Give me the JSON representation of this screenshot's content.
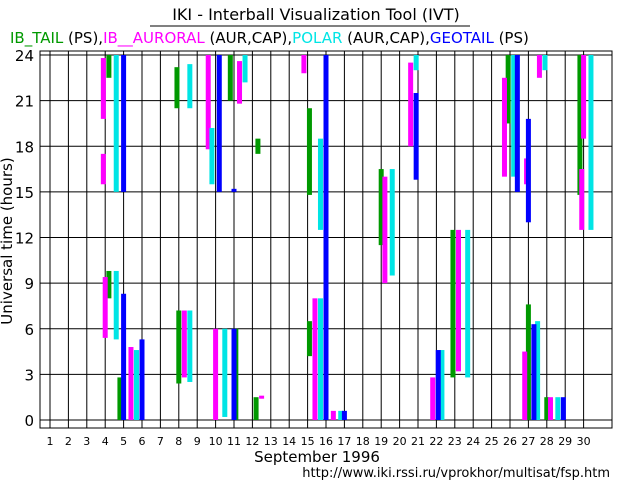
{
  "title": "IKI - Interball Visualization Tool (IVT)",
  "legend": [
    {
      "text": "IB_TAIL",
      "color": "#009900"
    },
    {
      "text": " (PS),",
      "color": "#000000"
    },
    {
      "text": "IB__AURORAL",
      "color": "#ff00ff"
    },
    {
      "text": " (AUR,CAP),",
      "color": "#000000"
    },
    {
      "text": "POLAR",
      "color": "#00e5e5"
    },
    {
      "text": " (AUR,CAP),",
      "color": "#000000"
    },
    {
      "text": "GEOTAIL",
      "color": "#0000ff"
    },
    {
      "text": " (PS)",
      "color": "#000000"
    }
  ],
  "xlabel": "September    1996",
  "ylabel": "Universal time (hours)",
  "footer_url": "http://www.iki.rssi.ru/vprokhor/multisat/fsp.htm",
  "chart_data": {
    "type": "timeline",
    "title": "IKI - Interball Visualization Tool (IVT)",
    "xlabel": "September 1996",
    "ylabel": "Universal time (hours)",
    "xlim": [
      1,
      31
    ],
    "ylim": [
      0,
      24
    ],
    "grid": true,
    "x_ticks": [
      1,
      2,
      3,
      4,
      5,
      6,
      7,
      8,
      9,
      10,
      11,
      12,
      13,
      14,
      15,
      16,
      17,
      18,
      19,
      20,
      21,
      22,
      23,
      24,
      25,
      26,
      27,
      28,
      29,
      30
    ],
    "y_ticks": [
      0,
      3,
      6,
      9,
      12,
      15,
      18,
      21,
      24
    ],
    "series": [
      {
        "name": "IB_TAIL",
        "color": "#009900",
        "intervals": [
          [
            4.2,
            22.5,
            24
          ],
          [
            4.2,
            8.0,
            9.8
          ],
          [
            4.8,
            0,
            2.8
          ],
          [
            7.9,
            20.5,
            23.2
          ],
          [
            8.0,
            2.4,
            7.2
          ],
          [
            10.8,
            21.0,
            24
          ],
          [
            11.1,
            0,
            6.0
          ],
          [
            12.2,
            0,
            1.5
          ],
          [
            12.3,
            17.5,
            18.5
          ],
          [
            15.1,
            14.8,
            20.5
          ],
          [
            15.1,
            4.2,
            6.5
          ],
          [
            19.0,
            11.5,
            16.5
          ],
          [
            22.9,
            2.8,
            12.5
          ],
          [
            25.9,
            19.5,
            24
          ],
          [
            27.0,
            0,
            7.6
          ],
          [
            28.0,
            0,
            1.5
          ],
          [
            29.8,
            14.8,
            24
          ]
        ]
      },
      {
        "name": "IB__AURORAL",
        "color": "#ff00ff",
        "intervals": [
          [
            3.9,
            19.8,
            23.8
          ],
          [
            3.9,
            15.5,
            17.5
          ],
          [
            4.0,
            5.4,
            9.4
          ],
          [
            5.4,
            0,
            4.8
          ],
          [
            8.3,
            2.8,
            7.2
          ],
          [
            9.6,
            17.8,
            24
          ],
          [
            10.0,
            0,
            6.0
          ],
          [
            11.3,
            20.8,
            23.6
          ],
          [
            12.5,
            1.4,
            1.6
          ],
          [
            14.8,
            22.8,
            24
          ],
          [
            15.4,
            0,
            8.0
          ],
          [
            16.4,
            0,
            0.6
          ],
          [
            19.2,
            9.0,
            16.0
          ],
          [
            20.6,
            18.0,
            23.5
          ],
          [
            21.8,
            0,
            2.8
          ],
          [
            23.2,
            3.2,
            12.5
          ],
          [
            25.7,
            16.0,
            22.5
          ],
          [
            26.8,
            0,
            4.5
          ],
          [
            26.9,
            15.5,
            17.2
          ],
          [
            27.3,
            0,
            6.0
          ],
          [
            27.6,
            22.5,
            24
          ],
          [
            28.2,
            0,
            1.5
          ],
          [
            29.9,
            12.5,
            16.5
          ],
          [
            30.0,
            18.5,
            24
          ]
        ]
      },
      {
        "name": "POLAR",
        "color": "#00e5e5",
        "intervals": [
          [
            4.6,
            5.3,
            9.8
          ],
          [
            4.6,
            15.0,
            24
          ],
          [
            5.7,
            0,
            4.6
          ],
          [
            8.6,
            2.5,
            7.2
          ],
          [
            8.6,
            20.5,
            23.4
          ],
          [
            9.8,
            15.5,
            19.2
          ],
          [
            10.5,
            0.2,
            6.0
          ],
          [
            11.6,
            22.2,
            24
          ],
          [
            15.7,
            0,
            8.0
          ],
          [
            15.7,
            12.5,
            18.5
          ],
          [
            16.8,
            0,
            0.6
          ],
          [
            19.6,
            9.5,
            16.5
          ],
          [
            20.9,
            23.0,
            24
          ],
          [
            22.3,
            0,
            4.6
          ],
          [
            23.7,
            2.8,
            12.5
          ],
          [
            26.2,
            16.0,
            24
          ],
          [
            27.5,
            0,
            6.5
          ],
          [
            27.9,
            23.0,
            24
          ],
          [
            28.6,
            0,
            1.5
          ],
          [
            30.4,
            12.5,
            24
          ]
        ]
      },
      {
        "name": "GEOTAIL",
        "color": "#0000ff",
        "intervals": [
          [
            5.0,
            15.0,
            24
          ],
          [
            5.0,
            0,
            8.3
          ],
          [
            6.0,
            0,
            5.3
          ],
          [
            10.2,
            15.0,
            24
          ],
          [
            11.0,
            0,
            6.0
          ],
          [
            11.0,
            15.0,
            15.2
          ],
          [
            16.0,
            0,
            24
          ],
          [
            17.0,
            0,
            0.6
          ],
          [
            20.9,
            15.8,
            21.5
          ],
          [
            22.1,
            0,
            4.6
          ],
          [
            26.4,
            15.0,
            24
          ],
          [
            27.0,
            13.0,
            19.8
          ],
          [
            27.3,
            0,
            6.3
          ],
          [
            28.9,
            0,
            1.5
          ]
        ]
      }
    ]
  }
}
